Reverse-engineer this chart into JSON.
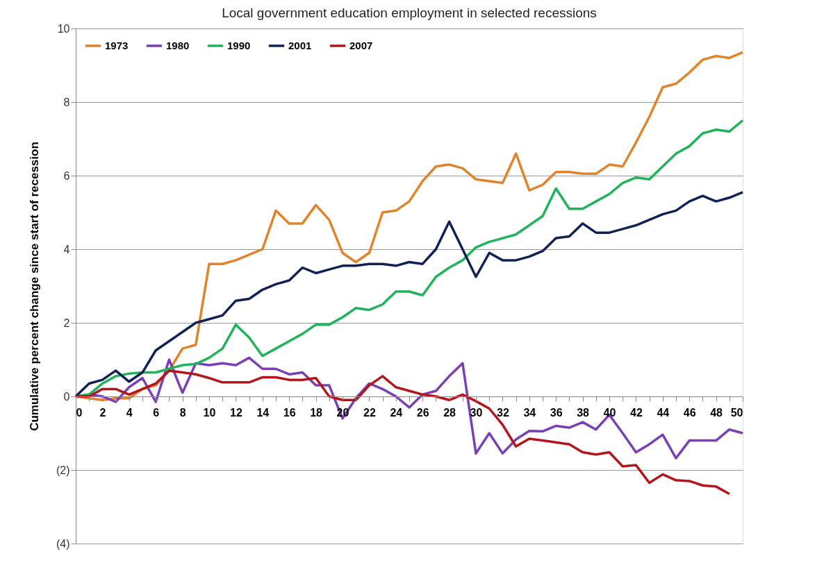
{
  "chart_data": {
    "type": "line",
    "title": "Local government education employment in selected recessions",
    "ylabel": "Cumulative percent change since start of recession",
    "x": [
      0,
      1,
      2,
      3,
      4,
      5,
      6,
      7,
      8,
      9,
      10,
      11,
      12,
      13,
      14,
      15,
      16,
      17,
      18,
      19,
      20,
      21,
      22,
      23,
      24,
      25,
      26,
      27,
      28,
      29,
      30,
      31,
      32,
      33,
      34,
      35,
      36,
      37,
      38,
      39,
      40,
      41,
      42,
      43,
      44,
      45,
      46,
      47,
      48,
      49,
      50
    ],
    "series": [
      {
        "name": "1973",
        "color": "#e0832a",
        "values": [
          0,
          -0.05,
          -0.1,
          -0.05,
          -0.05,
          0.2,
          0.3,
          0.7,
          1.3,
          1.4,
          3.6,
          3.6,
          3.7,
          3.85,
          4.0,
          5.05,
          4.7,
          4.7,
          5.2,
          4.8,
          3.9,
          3.65,
          3.9,
          5.0,
          5.05,
          5.3,
          5.85,
          6.25,
          6.3,
          6.2,
          5.9,
          5.85,
          5.8,
          6.6,
          5.6,
          5.75,
          6.1,
          6.1,
          6.05,
          6.05,
          6.3,
          6.25,
          6.9,
          7.6,
          8.4,
          8.5,
          8.8,
          9.15,
          9.25,
          9.2,
          9.35
        ]
      },
      {
        "name": "1980",
        "color": "#7b3fb5",
        "values": [
          0,
          0.05,
          0,
          -0.15,
          0.25,
          0.5,
          -0.15,
          1.0,
          0.1,
          0.9,
          0.85,
          0.9,
          0.85,
          1.05,
          0.75,
          0.75,
          0.6,
          0.65,
          0.3,
          0.3,
          -0.6,
          -0.05,
          0.35,
          0.2,
          0.0,
          -0.3,
          0.05,
          0.15,
          0.55,
          0.9,
          -1.55,
          -1.0,
          -1.55,
          -1.17,
          -0.94,
          -0.95,
          -0.8,
          -0.85,
          -0.7,
          -0.9,
          -0.5,
          -1.0,
          -1.52,
          -1.3,
          -1.04,
          -1.68,
          -1.2,
          -1.2,
          -1.2,
          -0.9,
          -1.0
        ]
      },
      {
        "name": "1990",
        "color": "#1fb45a",
        "values": [
          0,
          0.05,
          0.35,
          0.55,
          0.62,
          0.65,
          0.65,
          0.75,
          0.85,
          0.88,
          1.05,
          1.3,
          1.95,
          1.6,
          1.1,
          1.3,
          1.5,
          1.7,
          1.95,
          1.95,
          2.15,
          2.4,
          2.35,
          2.5,
          2.85,
          2.85,
          2.75,
          3.25,
          3.5,
          3.7,
          4.05,
          4.2,
          4.3,
          4.4,
          4.65,
          4.9,
          5.65,
          5.1,
          5.1,
          5.3,
          5.5,
          5.8,
          5.95,
          5.9,
          6.25,
          6.6,
          6.8,
          7.15,
          7.25,
          7.2,
          7.5
        ]
      },
      {
        "name": "2001",
        "color": "#0f2157",
        "values": [
          0,
          0.35,
          0.45,
          0.7,
          0.4,
          0.65,
          1.25,
          1.5,
          1.75,
          2.0,
          2.1,
          2.2,
          2.6,
          2.65,
          2.9,
          3.05,
          3.15,
          3.5,
          3.35,
          3.45,
          3.55,
          3.55,
          3.6,
          3.6,
          3.55,
          3.65,
          3.6,
          4.0,
          4.75,
          4.0,
          3.25,
          3.9,
          3.7,
          3.7,
          3.8,
          3.95,
          4.3,
          4.35,
          4.7,
          4.45,
          4.45,
          4.55,
          4.65,
          4.8,
          4.95,
          5.05,
          5.3,
          5.45,
          5.3,
          5.4,
          5.55
        ]
      },
      {
        "name": "2007",
        "color": "#b3151a",
        "values": [
          0,
          0,
          0.2,
          0.2,
          0.05,
          0.2,
          0.35,
          0.7,
          0.65,
          0.6,
          0.5,
          0.38,
          0.38,
          0.38,
          0.52,
          0.52,
          0.45,
          0.45,
          0.5,
          0,
          -0.1,
          -0.1,
          0.3,
          0.55,
          0.25,
          0.15,
          0.05,
          0,
          -0.1,
          0.05,
          -0.13,
          -0.33,
          -0.77,
          -1.36,
          -1.15,
          -1.2,
          -1.25,
          -1.3,
          -1.52,
          -1.58,
          -1.52,
          -1.9,
          -1.87,
          -2.35,
          -2.12,
          -2.28,
          -2.3,
          -2.42,
          -2.45,
          -2.65,
          null
        ]
      }
    ],
    "xlim": [
      0,
      50
    ],
    "xticks": [
      0,
      {
        "value": 1,
        "label": null
      },
      2,
      {
        "value": 3,
        "label": null
      },
      4,
      {
        "value": 5,
        "label": null
      },
      6,
      {
        "value": 7,
        "label": null
      },
      8,
      {
        "value": 9,
        "label": null
      },
      10,
      {
        "value": 11,
        "label": null
      },
      12,
      {
        "value": 13,
        "label": null
      },
      14,
      {
        "value": 15,
        "label": null
      },
      16,
      {
        "value": 17,
        "label": null
      },
      18,
      {
        "value": 19,
        "label": null
      },
      20,
      {
        "value": 21,
        "label": null
      },
      22,
      {
        "value": 23,
        "label": null
      },
      24,
      {
        "value": 25,
        "label": null
      },
      26,
      {
        "value": 27,
        "label": null
      },
      28,
      {
        "value": 29,
        "label": null
      },
      30,
      {
        "value": 31,
        "label": null
      },
      32,
      {
        "value": 33,
        "label": null
      },
      34,
      {
        "value": 35,
        "label": null
      },
      36,
      {
        "value": 37,
        "label": null
      },
      38,
      {
        "value": 39,
        "label": null
      },
      40,
      {
        "value": 41,
        "label": null
      },
      42,
      {
        "value": 43,
        "label": null
      },
      44,
      {
        "value": 45,
        "label": null
      },
      46,
      {
        "value": 47,
        "label": null
      },
      48,
      {
        "value": 49,
        "label": null
      },
      50
    ],
    "ylim": [
      -4,
      10
    ],
    "yticks": [
      {
        "value": -4,
        "label": "(4)"
      },
      {
        "value": -2,
        "label": "(2)"
      },
      0,
      2,
      4,
      6,
      8,
      10
    ],
    "grid": "y",
    "legend": "top left",
    "line_style": "solid"
  }
}
